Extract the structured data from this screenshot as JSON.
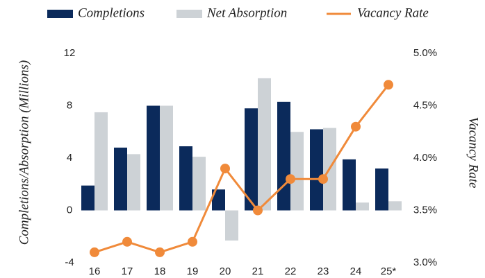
{
  "chart_data": {
    "type": "bar",
    "categories": [
      "16",
      "17",
      "18",
      "19",
      "20",
      "21",
      "22",
      "23",
      "24",
      "25*"
    ],
    "series": [
      {
        "name": "Completions",
        "color": "#0b2a5b",
        "values": [
          1.9,
          4.8,
          8.0,
          4.9,
          1.6,
          7.8,
          8.3,
          6.2,
          3.9,
          3.2
        ]
      },
      {
        "name": "Net Absorption",
        "color": "#cdd2d6",
        "values": [
          7.5,
          4.3,
          8.0,
          4.1,
          -2.3,
          10.1,
          6.0,
          6.3,
          0.6,
          0.7
        ]
      },
      {
        "name": "Vacancy Rate",
        "color": "#f08a3a",
        "type": "line",
        "axis": "y2",
        "values": [
          3.1,
          3.2,
          3.1,
          3.2,
          3.9,
          3.5,
          3.8,
          3.8,
          4.3,
          4.7
        ]
      }
    ],
    "ylabel": "Completions/Absorption (Millions)",
    "y2label": "Vacancy Rate",
    "ylim": [
      -4,
      12
    ],
    "yticks": [
      12,
      8,
      4,
      0,
      -4
    ],
    "y2lim": [
      3,
      5
    ],
    "y2ticks": [
      {
        "value": 5,
        "label": "5.0%"
      },
      {
        "value": 4.5,
        "label": "4.5%"
      },
      {
        "value": 4,
        "label": "4.0%"
      },
      {
        "value": 3.5,
        "label": "3.5%"
      },
      {
        "value": 3,
        "label": "3.0%"
      }
    ],
    "grid": false
  }
}
